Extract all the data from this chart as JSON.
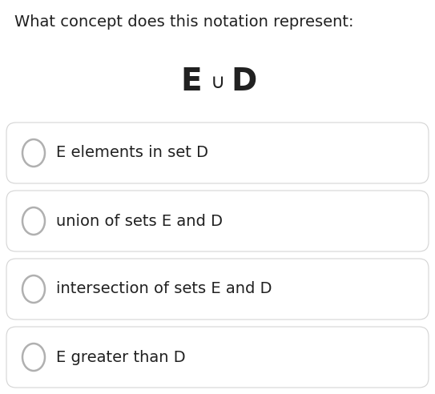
{
  "question": "What concept does this notation represent:",
  "notation_E": "E",
  "notation_union": "∪",
  "notation_D": "D",
  "options": [
    "E greater than D",
    "intersection of sets E and D",
    "union of sets E and D",
    "E elements in set D"
  ],
  "bg_color": "#ffffff",
  "text_color": "#212121",
  "option_box_facecolor": "#ffffff",
  "option_box_edgecolor": "#d4d4d4",
  "radio_edge_color": "#b0b0b0",
  "radio_face_color": "#ffffff",
  "question_fontsize": 14,
  "notation_E_fontsize": 28,
  "notation_union_fontsize": 18,
  "notation_D_fontsize": 28,
  "option_fontsize": 14,
  "fig_width": 5.43,
  "fig_height": 4.92,
  "dpi": 100
}
